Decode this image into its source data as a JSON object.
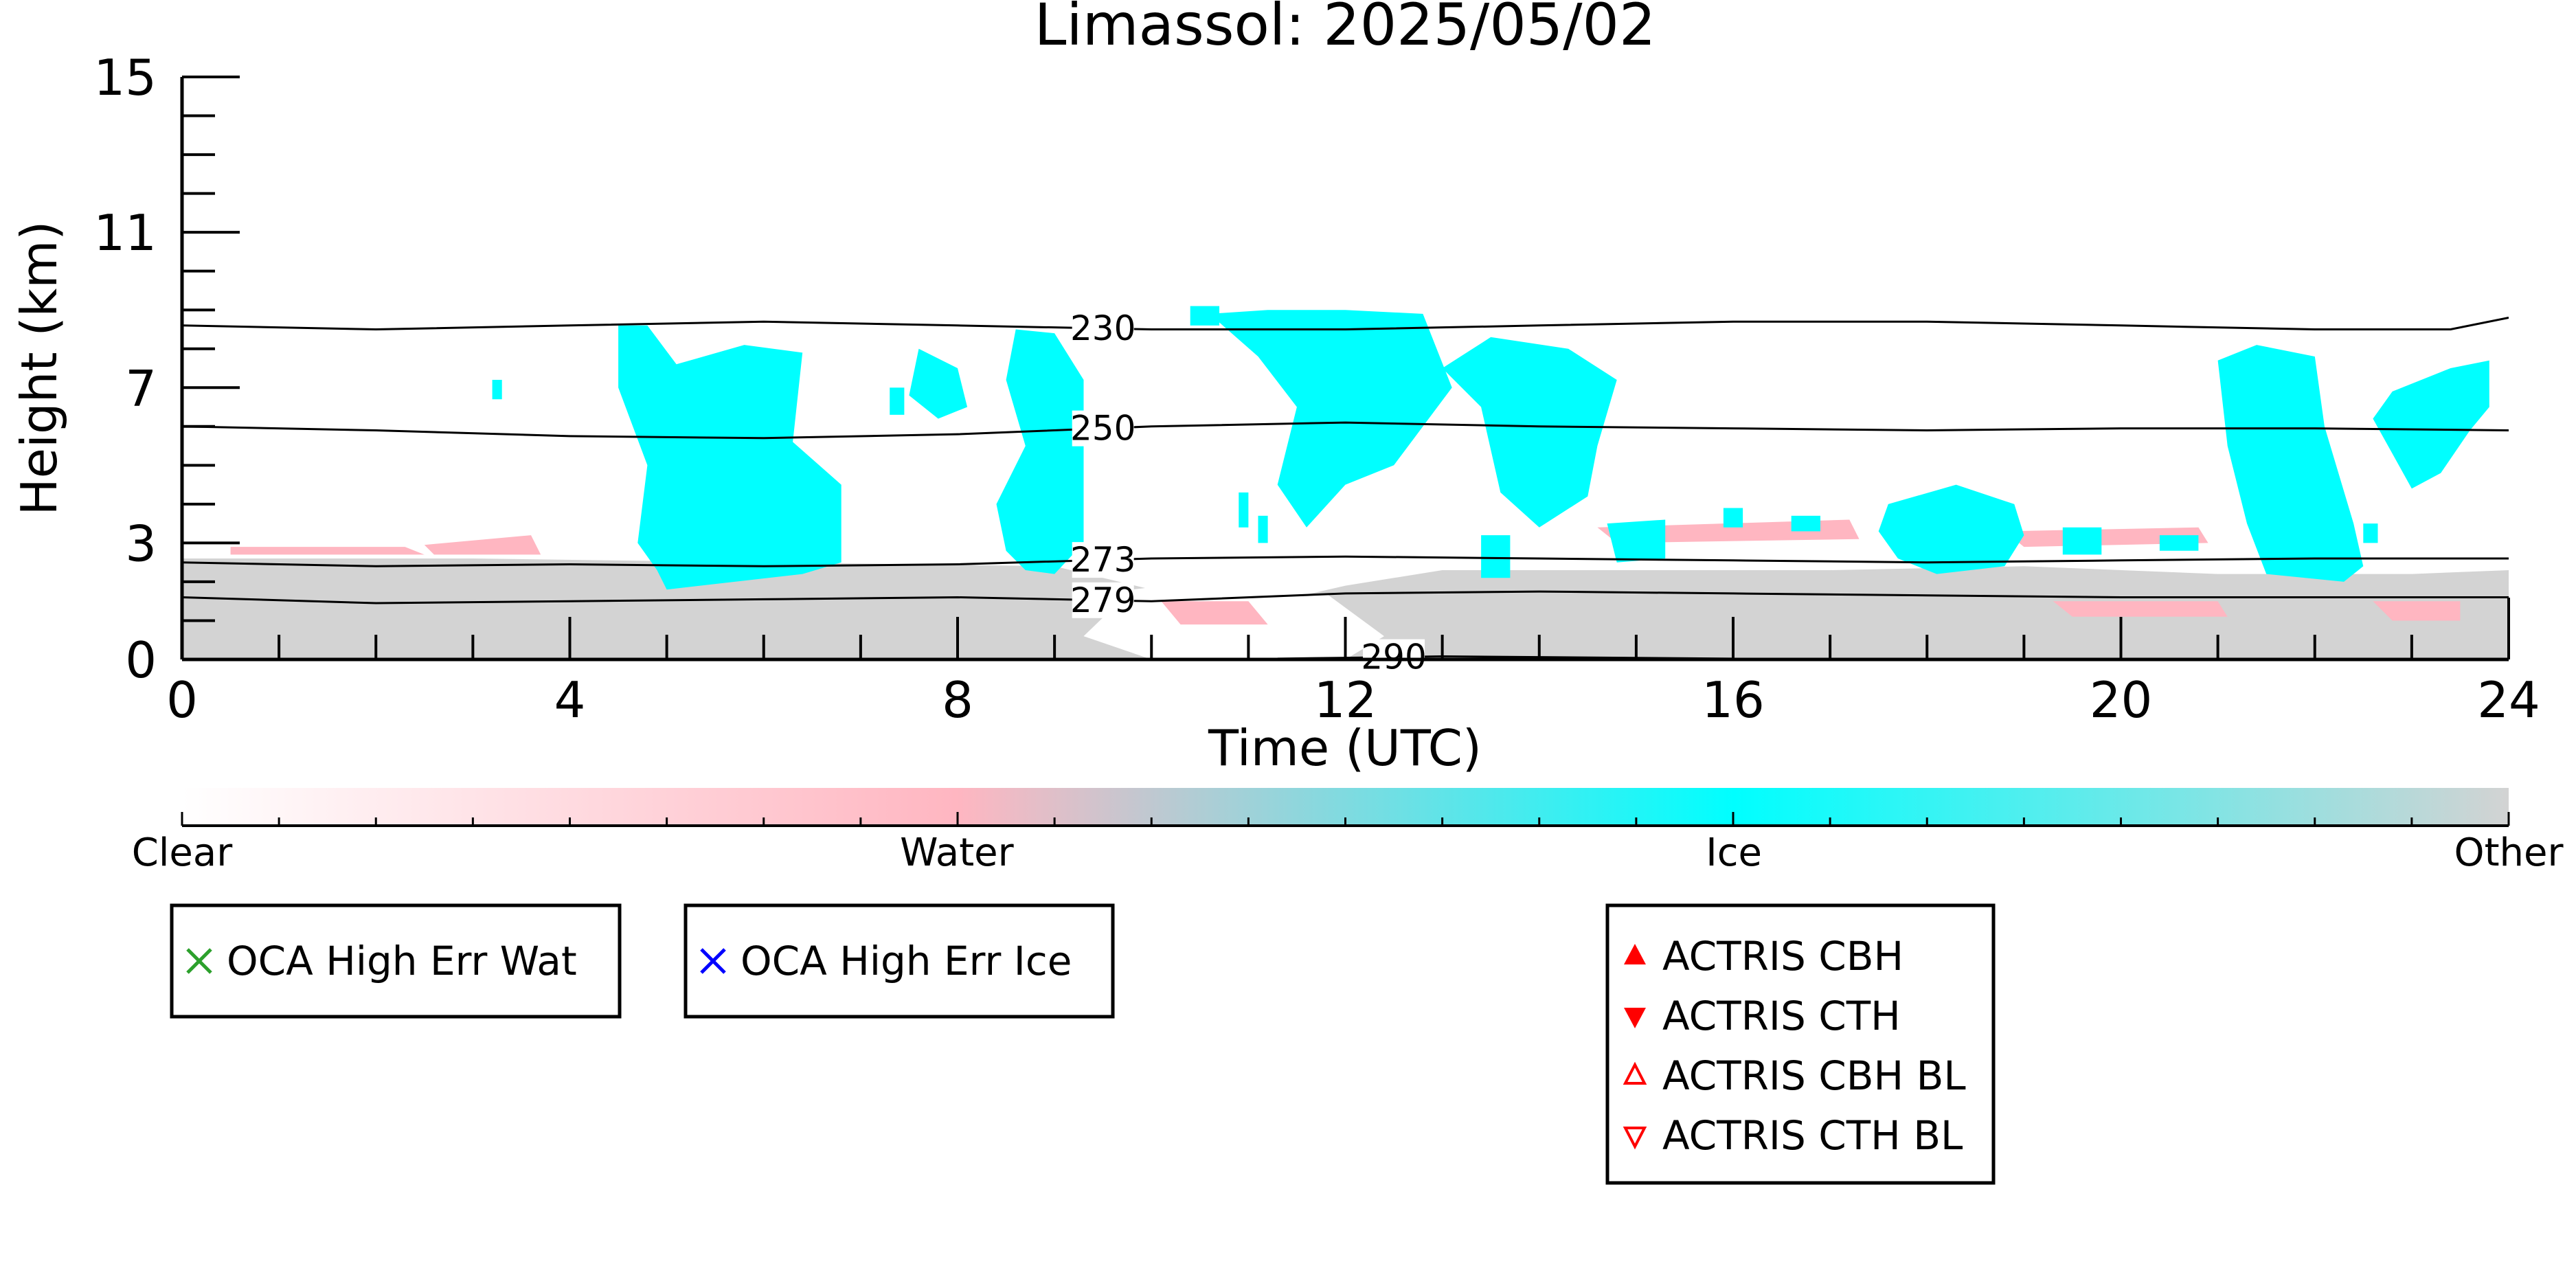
{
  "chart_data": {
    "type": "heatmap",
    "title": "Limassol: 2025/05/02",
    "xlabel": "Time (UTC)",
    "ylabel": "Height (km)",
    "xlim": [
      0,
      24
    ],
    "ylim": [
      0,
      15
    ],
    "x_ticks": [
      0,
      4,
      8,
      12,
      16,
      20,
      24
    ],
    "y_ticks": [
      0,
      3,
      7,
      11,
      15
    ],
    "x_tick_labels": [
      "0",
      "4",
      "8",
      "12",
      "16",
      "20",
      "24"
    ],
    "y_tick_labels": [
      "0",
      "3",
      "7",
      "11",
      "15"
    ],
    "colors": {
      "clear": "#ffffff",
      "water": "#ffb6c1",
      "ice": "#00ffff",
      "other": "#d3d3d3",
      "isotherm": "#000000"
    },
    "classes": [
      {
        "name": "Clear",
        "position": 0.0
      },
      {
        "name": "Water",
        "position": 0.333
      },
      {
        "name": "Ice",
        "position": 0.667
      },
      {
        "name": "Other",
        "position": 1.0
      }
    ],
    "isotherms": [
      {
        "label": "230",
        "label_x": 9.5,
        "points": [
          [
            0,
            8.6
          ],
          [
            2,
            8.5
          ],
          [
            4,
            8.6
          ],
          [
            6,
            8.7
          ],
          [
            8,
            8.6
          ],
          [
            10,
            8.5
          ],
          [
            12,
            8.5
          ],
          [
            14,
            8.6
          ],
          [
            16,
            8.7
          ],
          [
            18,
            8.7
          ],
          [
            20,
            8.6
          ],
          [
            22,
            8.5
          ],
          [
            23.4,
            8.5
          ],
          [
            24,
            8.8
          ]
        ]
      },
      {
        "label": "250",
        "label_x": 9.5,
        "points": [
          [
            0,
            6.0
          ],
          [
            2,
            5.9
          ],
          [
            4,
            5.75
          ],
          [
            6,
            5.7
          ],
          [
            8,
            5.8
          ],
          [
            10,
            6.0
          ],
          [
            12,
            6.1
          ],
          [
            14,
            6.0
          ],
          [
            16,
            5.95
          ],
          [
            18,
            5.9
          ],
          [
            20,
            5.95
          ],
          [
            22,
            5.95
          ],
          [
            24,
            5.9
          ]
        ]
      },
      {
        "label": "273",
        "label_x": 9.5,
        "points": [
          [
            0,
            2.5
          ],
          [
            2,
            2.4
          ],
          [
            4,
            2.45
          ],
          [
            6,
            2.4
          ],
          [
            8,
            2.45
          ],
          [
            10,
            2.6
          ],
          [
            12,
            2.65
          ],
          [
            14,
            2.6
          ],
          [
            16,
            2.55
          ],
          [
            18,
            2.5
          ],
          [
            20,
            2.55
          ],
          [
            22,
            2.6
          ],
          [
            24,
            2.6
          ]
        ]
      },
      {
        "label": "279",
        "label_x": 9.5,
        "points": [
          [
            0,
            1.6
          ],
          [
            2,
            1.45
          ],
          [
            4,
            1.5
          ],
          [
            6,
            1.55
          ],
          [
            8,
            1.6
          ],
          [
            10,
            1.5
          ],
          [
            12,
            1.7
          ],
          [
            14,
            1.75
          ],
          [
            16,
            1.7
          ],
          [
            18,
            1.65
          ],
          [
            20,
            1.6
          ],
          [
            22,
            1.6
          ],
          [
            24,
            1.6
          ]
        ]
      },
      {
        "label": "290",
        "label_x": 12.5,
        "points": [
          [
            11.3,
            0.02
          ],
          [
            12.2,
            0.05
          ],
          [
            13,
            0.08
          ],
          [
            14,
            0.06
          ],
          [
            15,
            0.04
          ],
          [
            16,
            0.02
          ]
        ]
      }
    ],
    "regions": [
      {
        "class": "Other",
        "polygon": [
          [
            0,
            0
          ],
          [
            0,
            2.6
          ],
          [
            3,
            2.6
          ],
          [
            6,
            2.5
          ],
          [
            9,
            2.4
          ],
          [
            10,
            1.8
          ],
          [
            11.3,
            1.5
          ],
          [
            12,
            1.9
          ],
          [
            13,
            2.3
          ],
          [
            15,
            2.3
          ],
          [
            17,
            2.3
          ],
          [
            19,
            2.4
          ],
          [
            21,
            2.2
          ],
          [
            23,
            2.2
          ],
          [
            24,
            2.3
          ],
          [
            24,
            0
          ]
        ]
      },
      {
        "class": "Clear",
        "polygon": [
          [
            9.3,
            0.6
          ],
          [
            9.8,
            1.8
          ],
          [
            10.5,
            2.0
          ],
          [
            11.2,
            1.6
          ],
          [
            11.8,
            1.7
          ],
          [
            12.4,
            0.6
          ],
          [
            12,
            0
          ],
          [
            10,
            0
          ]
        ]
      },
      {
        "class": "Water",
        "polygon": [
          [
            0.5,
            2.9
          ],
          [
            2.3,
            2.9
          ],
          [
            2.5,
            2.7
          ],
          [
            0.5,
            2.7
          ]
        ]
      },
      {
        "class": "Water",
        "polygon": [
          [
            2.5,
            2.95
          ],
          [
            3.6,
            3.2
          ],
          [
            3.7,
            2.7
          ],
          [
            2.6,
            2.7
          ]
        ]
      },
      {
        "class": "Water",
        "polygon": [
          [
            10.1,
            1.5
          ],
          [
            11.0,
            1.5
          ],
          [
            11.2,
            0.9
          ],
          [
            10.3,
            0.9
          ]
        ]
      },
      {
        "class": "Water",
        "polygon": [
          [
            14.6,
            3.4
          ],
          [
            17.2,
            3.6
          ],
          [
            17.3,
            3.1
          ],
          [
            14.8,
            3.0
          ]
        ]
      },
      {
        "class": "Water",
        "polygon": [
          [
            18.8,
            3.3
          ],
          [
            20.8,
            3.4
          ],
          [
            20.9,
            3.0
          ],
          [
            19.0,
            2.9
          ]
        ]
      },
      {
        "class": "Water",
        "polygon": [
          [
            19.3,
            1.5
          ],
          [
            21.0,
            1.5
          ],
          [
            21.1,
            1.1
          ],
          [
            19.5,
            1.1
          ]
        ]
      },
      {
        "class": "Water",
        "polygon": [
          [
            22.6,
            1.5
          ],
          [
            23.5,
            1.5
          ],
          [
            23.5,
            1.0
          ],
          [
            22.8,
            1.0
          ]
        ]
      },
      {
        "class": "Ice",
        "polygon": [
          [
            4.5,
            8.6
          ],
          [
            4.8,
            8.6
          ],
          [
            5.1,
            7.6
          ],
          [
            5.8,
            8.1
          ],
          [
            6.4,
            7.9
          ],
          [
            6.3,
            5.6
          ],
          [
            6.8,
            4.5
          ],
          [
            6.8,
            2.5
          ],
          [
            6.4,
            2.2
          ],
          [
            5.0,
            1.8
          ],
          [
            4.9,
            2.3
          ],
          [
            4.7,
            3.0
          ],
          [
            4.8,
            5.0
          ],
          [
            4.5,
            7.0
          ]
        ]
      },
      {
        "class": "Ice",
        "polygon": [
          [
            8.6,
            8.5
          ],
          [
            9.0,
            8.4
          ],
          [
            9.3,
            7.2
          ],
          [
            9.3,
            3.0
          ],
          [
            9.0,
            2.2
          ],
          [
            8.7,
            2.3
          ],
          [
            8.5,
            2.8
          ],
          [
            8.4,
            4.0
          ],
          [
            8.7,
            5.5
          ],
          [
            8.5,
            7.2
          ]
        ]
      },
      {
        "class": "Ice",
        "polygon": [
          [
            7.6,
            8.0
          ],
          [
            8.0,
            7.5
          ],
          [
            8.1,
            6.5
          ],
          [
            7.8,
            6.2
          ],
          [
            7.5,
            6.8
          ]
        ]
      },
      {
        "class": "Ice",
        "polygon": [
          [
            10.6,
            8.9
          ],
          [
            11.2,
            9.0
          ],
          [
            12.0,
            9.0
          ],
          [
            12.8,
            8.9
          ],
          [
            13.1,
            7.0
          ],
          [
            12.8,
            6.0
          ],
          [
            12.5,
            5.0
          ],
          [
            12.0,
            4.5
          ],
          [
            11.6,
            3.4
          ],
          [
            11.3,
            4.5
          ],
          [
            11.5,
            6.5
          ],
          [
            11.1,
            7.8
          ]
        ]
      },
      {
        "class": "Ice",
        "polygon": [
          [
            13.0,
            7.5
          ],
          [
            13.5,
            8.3
          ],
          [
            14.3,
            8.0
          ],
          [
            14.8,
            7.2
          ],
          [
            14.6,
            5.5
          ],
          [
            14.5,
            4.2
          ],
          [
            14.0,
            3.4
          ],
          [
            13.6,
            4.3
          ],
          [
            13.4,
            6.5
          ]
        ]
      },
      {
        "class": "Ice",
        "polygon": [
          [
            13.4,
            3.2
          ],
          [
            13.7,
            3.2
          ],
          [
            13.7,
            2.1
          ],
          [
            13.4,
            2.1
          ]
        ]
      },
      {
        "class": "Ice",
        "polygon": [
          [
            14.7,
            3.5
          ],
          [
            15.3,
            3.6
          ],
          [
            15.3,
            2.6
          ],
          [
            14.8,
            2.5
          ]
        ]
      },
      {
        "class": "Ice",
        "polygon": [
          [
            17.6,
            4.0
          ],
          [
            18.3,
            4.5
          ],
          [
            18.9,
            4.0
          ],
          [
            19.0,
            3.2
          ],
          [
            18.8,
            2.4
          ],
          [
            18.1,
            2.2
          ],
          [
            17.7,
            2.6
          ],
          [
            17.5,
            3.3
          ]
        ]
      },
      {
        "class": "Ice",
        "polygon": [
          [
            19.4,
            3.4
          ],
          [
            19.8,
            3.4
          ],
          [
            19.8,
            2.7
          ],
          [
            19.4,
            2.7
          ]
        ]
      },
      {
        "class": "Ice",
        "polygon": [
          [
            20.4,
            3.2
          ],
          [
            20.8,
            3.2
          ],
          [
            20.8,
            2.8
          ],
          [
            20.4,
            2.8
          ]
        ]
      },
      {
        "class": "Ice",
        "polygon": [
          [
            21.0,
            7.7
          ],
          [
            21.4,
            8.1
          ],
          [
            22.0,
            7.8
          ],
          [
            22.1,
            6.0
          ],
          [
            22.4,
            3.5
          ],
          [
            22.5,
            2.4
          ],
          [
            22.3,
            2.0
          ],
          [
            21.5,
            2.2
          ],
          [
            21.3,
            3.5
          ],
          [
            21.1,
            5.5
          ]
        ]
      },
      {
        "class": "Ice",
        "polygon": [
          [
            22.8,
            6.9
          ],
          [
            23.4,
            7.5
          ],
          [
            23.8,
            7.7
          ],
          [
            23.8,
            6.5
          ],
          [
            23.6,
            5.9
          ],
          [
            23.3,
            4.8
          ],
          [
            23.0,
            4.4
          ],
          [
            22.8,
            5.3
          ],
          [
            22.6,
            6.2
          ]
        ]
      }
    ],
    "speckles": [
      {
        "class": "Ice",
        "x": 3.2,
        "y": 6.7,
        "w": 0.1,
        "h": 0.5
      },
      {
        "class": "Ice",
        "x": 7.3,
        "y": 6.3,
        "w": 0.15,
        "h": 0.7
      },
      {
        "class": "Ice",
        "x": 10.4,
        "y": 8.6,
        "w": 0.3,
        "h": 0.5
      },
      {
        "class": "Ice",
        "x": 10.9,
        "y": 3.4,
        "w": 0.1,
        "h": 0.9
      },
      {
        "class": "Ice",
        "x": 11.1,
        "y": 3.0,
        "w": 0.1,
        "h": 0.7
      },
      {
        "class": "Ice",
        "x": 15.9,
        "y": 3.4,
        "w": 0.2,
        "h": 0.5
      },
      {
        "class": "Ice",
        "x": 16.6,
        "y": 3.3,
        "w": 0.3,
        "h": 0.4
      },
      {
        "class": "Ice",
        "x": 22.5,
        "y": 3.0,
        "w": 0.15,
        "h": 0.5
      }
    ],
    "legend_boxes": [
      {
        "position": "below-left",
        "items": [
          {
            "label": "OCA High Err Wat",
            "marker": "x",
            "color": "#2ca02c"
          }
        ]
      },
      {
        "position": "below-left-center",
        "items": [
          {
            "label": "OCA High Err Ice",
            "marker": "x",
            "color": "#0000ff"
          }
        ]
      },
      {
        "position": "below-center",
        "items": [
          {
            "label": "ACTRIS CBH",
            "marker": "triangle-up-filled",
            "color": "#ff0000"
          },
          {
            "label": "ACTRIS CTH",
            "marker": "triangle-down-filled",
            "color": "#ff0000"
          },
          {
            "label": "ACTRIS CBH BL",
            "marker": "triangle-up-open",
            "color": "#ff0000"
          },
          {
            "label": "ACTRIS CTH BL",
            "marker": "triangle-down-open",
            "color": "#ff0000"
          }
        ]
      }
    ],
    "grid": false
  }
}
